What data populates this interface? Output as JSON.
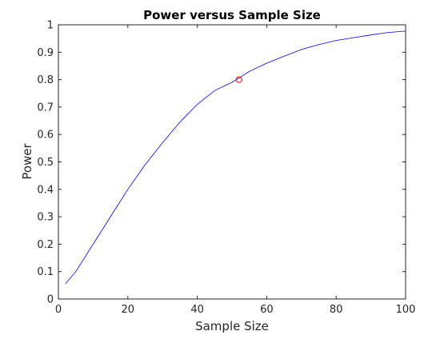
{
  "chart_data": {
    "type": "line",
    "title": "Power versus Sample Size",
    "xlabel": "Sample Size",
    "ylabel": "Power",
    "xlim": [
      0,
      100
    ],
    "ylim": [
      0,
      1
    ],
    "xticks": [
      0,
      20,
      40,
      60,
      80,
      100
    ],
    "yticks": [
      0,
      0.1,
      0.2,
      0.3,
      0.4,
      0.5,
      0.6,
      0.7,
      0.8,
      0.9,
      1
    ],
    "x_tick_labels": [
      "0",
      "20",
      "40",
      "60",
      "80",
      "100"
    ],
    "y_tick_labels": [
      "0",
      "0.1",
      "0.2",
      "0.3",
      "0.4",
      "0.5",
      "0.6",
      "0.7",
      "0.8",
      "0.9",
      "1"
    ],
    "grid": false,
    "series": [
      {
        "color": "#0000ff",
        "x": [
          2,
          5,
          10,
          15,
          20,
          25,
          30,
          35,
          40,
          45,
          50,
          55,
          60,
          65,
          70,
          75,
          80,
          85,
          90,
          95,
          100
        ],
        "y": [
          0.055,
          0.1,
          0.2,
          0.3,
          0.4,
          0.49,
          0.57,
          0.645,
          0.71,
          0.76,
          0.79,
          0.83,
          0.86,
          0.885,
          0.91,
          0.928,
          0.943,
          0.953,
          0.963,
          0.972,
          0.977
        ]
      }
    ],
    "marker": {
      "x": 52,
      "y": 0.8,
      "color": "#ff0000",
      "shape": "circle"
    }
  }
}
